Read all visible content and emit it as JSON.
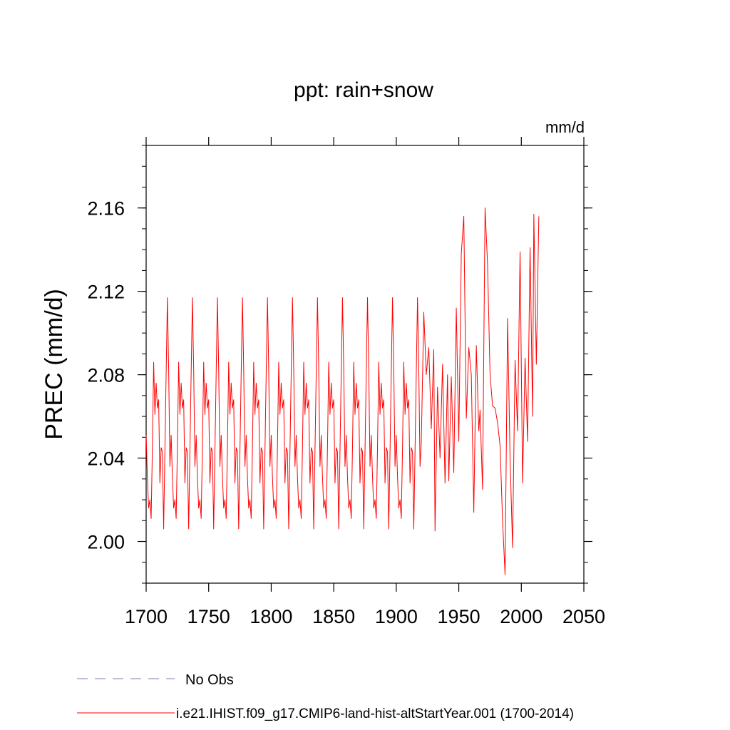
{
  "chart_data": {
    "type": "line",
    "title": "ppt: rain+snow",
    "units_label": "mm/d",
    "ylabel": "PREC  (mm/d)",
    "xlabel": "",
    "xlim": [
      1700,
      2050
    ],
    "ylim": [
      1.98,
      2.19
    ],
    "xticks": [
      1700,
      1750,
      1800,
      1850,
      1900,
      1950,
      2000,
      2050
    ],
    "xtick_labels": [
      "1700",
      "1750",
      "1800",
      "1850",
      "1900",
      "1950",
      "2000",
      "2050"
    ],
    "yticks": [
      2.0,
      2.04,
      2.08,
      2.12,
      2.16
    ],
    "ytick_labels": [
      "2.00",
      "2.04",
      "2.08",
      "2.12",
      "2.16"
    ],
    "grid": false,
    "legend_position": "bottom-left",
    "series": [
      {
        "name": "No Obs",
        "color": "#7b7bb8",
        "dash": "dashed",
        "values": []
      },
      {
        "name": "i.e21.IHIST.f09_g17.CMIP6-land-hist-altStartYear.001 (1700-2014)",
        "color": "#ff0000",
        "dash": "solid",
        "cycle_start_year": 1700,
        "cycle_end_year": 1919,
        "cycle_values": [
          2.051,
          2.031,
          2.016,
          2.02,
          2.011,
          2.045,
          2.086,
          2.061,
          2.076,
          2.064,
          2.068,
          2.028,
          2.045,
          2.043,
          2.006,
          2.043,
          2.081,
          2.117,
          2.083,
          2.036
        ],
        "x": [
          1920,
          1922,
          1924,
          1926,
          1928,
          1930,
          1931,
          1933,
          1935,
          1937,
          1939,
          1941,
          1942,
          1944,
          1946,
          1948,
          1950,
          1952,
          1954,
          1956,
          1958,
          1960,
          1962,
          1964,
          1966,
          1967,
          1969,
          1971,
          1973,
          1975,
          1977,
          1979,
          1981,
          1983,
          1985,
          1987,
          1989,
          1991,
          1993,
          1995,
          1997,
          1999,
          2001,
          2003,
          2005,
          2007,
          2009,
          2010,
          2012,
          2014
        ],
        "values": [
          2.047,
          2.11,
          2.08,
          2.093,
          2.054,
          2.092,
          2.005,
          2.074,
          2.04,
          2.085,
          2.028,
          2.08,
          2.029,
          2.079,
          2.033,
          2.112,
          2.048,
          2.138,
          2.156,
          2.059,
          2.093,
          2.08,
          2.014,
          2.094,
          2.053,
          2.063,
          2.025,
          2.16,
          2.133,
          2.08,
          2.065,
          2.064,
          2.057,
          2.046,
          2.01,
          1.984,
          2.107,
          2.04,
          1.997,
          2.087,
          2.053,
          2.139,
          2.028,
          2.088,
          2.048,
          2.141,
          2.06,
          2.157,
          2.085,
          2.156
        ]
      }
    ]
  }
}
